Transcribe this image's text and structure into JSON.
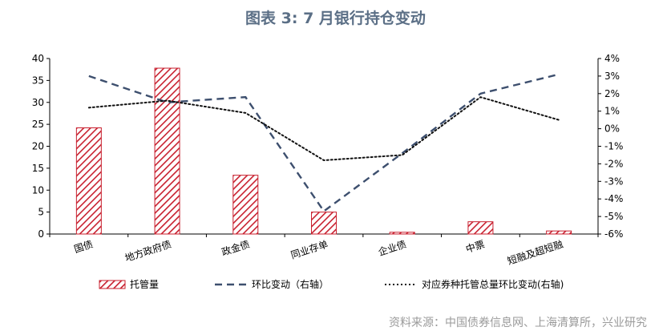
{
  "title": "图表 3:  7 月银行持仓变动",
  "source": "资料来源：中国债券信息网、上海清算所，兴业研究",
  "colors": {
    "bar": "#c8202f",
    "line_qoq": "#3d4f6e",
    "line_total": "#111111",
    "axis": "#000000"
  },
  "chart_data": {
    "type": "bar",
    "categories": [
      "国债",
      "地方政府债",
      "政金债",
      "同业存单",
      "企业债",
      "中票",
      "短融及超短融"
    ],
    "left_axis": {
      "ylim": [
        0,
        40
      ],
      "ticks": [
        0,
        5,
        10,
        15,
        20,
        25,
        30,
        35,
        40
      ],
      "tick_labels": [
        "0",
        "5",
        "10",
        "15",
        "20",
        "25",
        "30",
        "35",
        "40"
      ]
    },
    "right_axis": {
      "ylim": [
        -6,
        4
      ],
      "ticks": [
        -6,
        -5,
        -4,
        -3,
        -2,
        -1,
        0,
        1,
        2,
        3,
        4
      ],
      "tick_labels": [
        "-6%",
        "-5%",
        "-4%",
        "-3%",
        "-2%",
        "-1%",
        "0%",
        "1%",
        "2%",
        "3%",
        "4%"
      ]
    },
    "series": [
      {
        "name": "托管量",
        "kind": "bar",
        "axis": "left",
        "values": [
          24.2,
          37.8,
          13.4,
          5.0,
          0.4,
          2.8,
          0.7
        ]
      },
      {
        "name": "环比变动（右轴）",
        "kind": "line",
        "style": "dashed",
        "axis": "right",
        "values": [
          3.0,
          1.5,
          1.8,
          -4.7,
          -1.4,
          2.0,
          3.1
        ]
      },
      {
        "name": "对应券种托管总量环比变动(右轴)",
        "kind": "line",
        "style": "dotted",
        "axis": "right",
        "values": [
          1.2,
          1.6,
          0.9,
          -1.8,
          -1.5,
          1.8,
          0.5
        ]
      }
    ],
    "legend_position": "bottom",
    "grid": false
  }
}
